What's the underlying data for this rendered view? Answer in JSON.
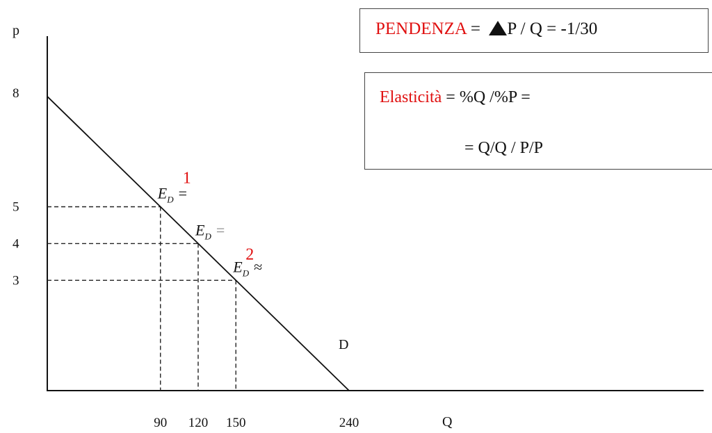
{
  "chart_data": {
    "type": "line",
    "x_axis_label": "Q",
    "y_axis_label": "p",
    "y_ticks": [
      8,
      5,
      4,
      3
    ],
    "x_ticks": [
      90,
      120,
      150,
      240
    ],
    "xlim": [
      0,
      250
    ],
    "ylim": [
      0,
      8
    ],
    "series": [
      {
        "name": "D",
        "x": [
          0,
          240
        ],
        "y": [
          8,
          0
        ]
      }
    ],
    "points": [
      {
        "x": 90,
        "y": 5,
        "label": "E_D =",
        "number": "1"
      },
      {
        "x": 120,
        "y": 4,
        "label": "E_D =",
        "number": ""
      },
      {
        "x": 150,
        "y": 3,
        "label": "E_D ≈",
        "number": "2"
      }
    ],
    "grid": false,
    "legend": "none"
  },
  "pendenza": {
    "label": "PENDENZA",
    "eq1": "=",
    "num": "P",
    "slash": "/",
    "den": "Q",
    "value": "= -1/30"
  },
  "elasticita": {
    "label": "Elasticità",
    "eq": "=",
    "num": "%Q",
    "slash": "/",
    "den": "%P =",
    "line2_eq": "=",
    "line2_num": "Q/Q",
    "line2_slash": "/",
    "line2_den": "P/P"
  },
  "colors": {
    "accent": "#e01010",
    "axis": "#111111",
    "dashed": "#222222"
  }
}
